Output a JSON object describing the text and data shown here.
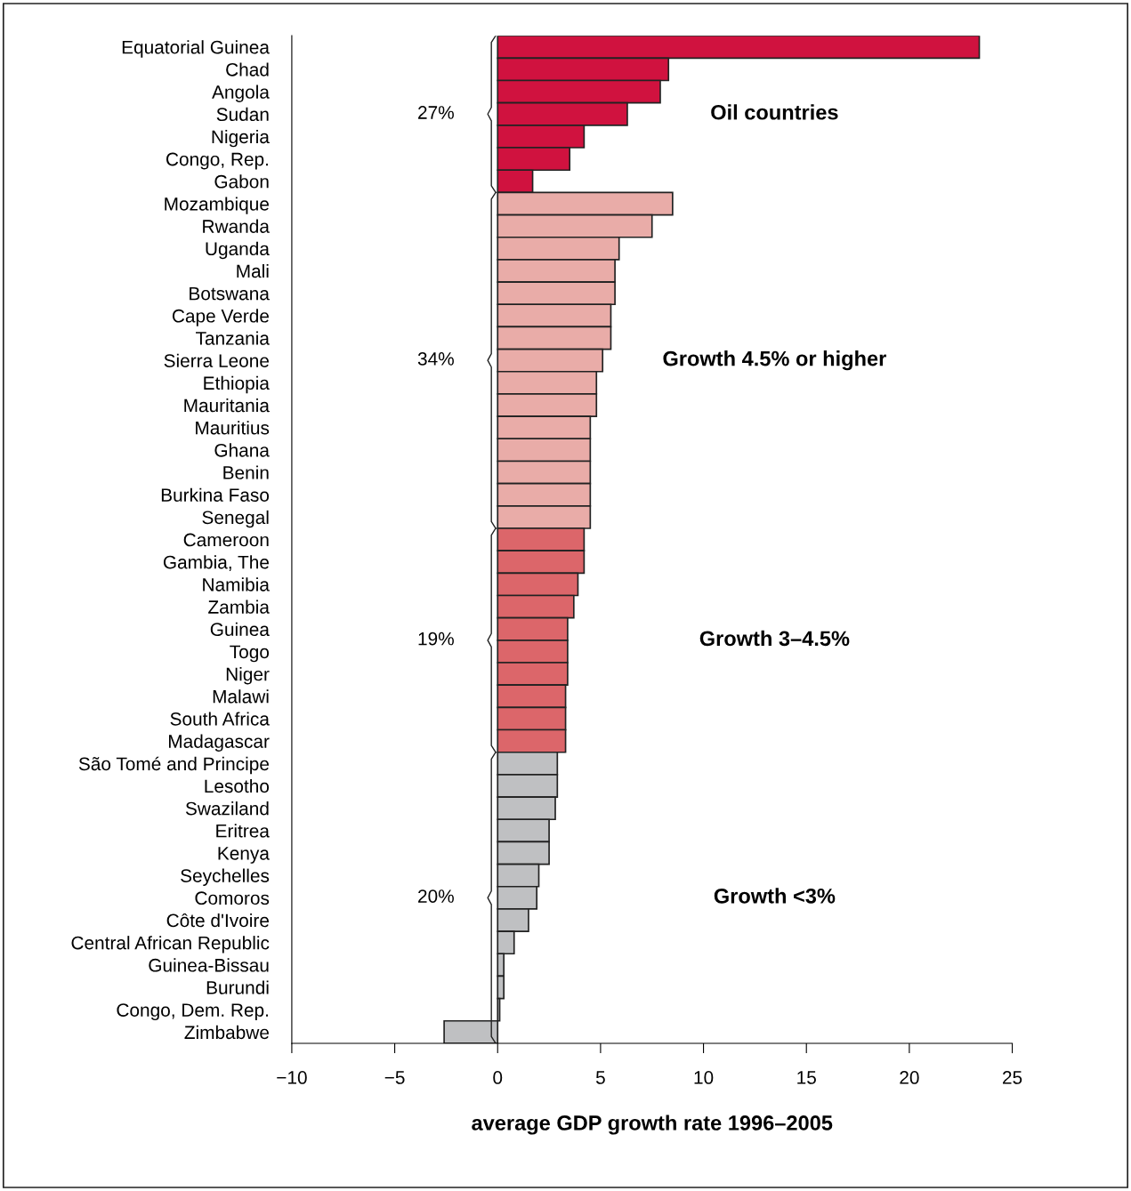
{
  "chart_data": {
    "type": "bar",
    "orientation": "horizontal",
    "xlabel": "average GDP growth rate 1996–2005",
    "categories": [
      "Equatorial Guinea",
      "Chad",
      "Angola",
      "Sudan",
      "Nigeria",
      "Congo, Rep.",
      "Gabon",
      "Mozambique",
      "Rwanda",
      "Uganda",
      "Mali",
      "Botswana",
      "Cape Verde",
      "Tanzania",
      "Sierra Leone",
      "Ethiopia",
      "Mauritania",
      "Mauritius",
      "Ghana",
      "Benin",
      "Burkina Faso",
      "Senegal",
      "Cameroon",
      "Gambia, The",
      "Namibia",
      "Zambia",
      "Guinea",
      "Togo",
      "Niger",
      "Malawi",
      "South Africa",
      "Madagascar",
      "São Tomé and Principe",
      "Lesotho",
      "Swaziland",
      "Eritrea",
      "Kenya",
      "Seychelles",
      "Comoros",
      "Côte d'Ivoire",
      "Central African Republic",
      "Guinea-Bissau",
      "Burundi",
      "Congo, Dem. Rep.",
      "Zimbabwe"
    ],
    "values": [
      23.4,
      8.3,
      7.9,
      6.3,
      4.2,
      3.5,
      1.7,
      8.5,
      7.5,
      5.9,
      5.7,
      5.7,
      5.5,
      5.5,
      5.1,
      4.8,
      4.8,
      4.5,
      4.5,
      4.5,
      4.5,
      4.5,
      4.2,
      4.2,
      3.9,
      3.7,
      3.4,
      3.4,
      3.4,
      3.3,
      3.3,
      3.3,
      2.9,
      2.9,
      2.8,
      2.5,
      2.5,
      2.0,
      1.9,
      1.5,
      0.8,
      0.3,
      0.3,
      0.1,
      -2.6
    ],
    "colors": [
      "#d0123f",
      "#d0123f",
      "#d0123f",
      "#d0123f",
      "#d0123f",
      "#d0123f",
      "#d0123f",
      "#e9aca8",
      "#e9aca8",
      "#e9aca8",
      "#e9aca8",
      "#e9aca8",
      "#e9aca8",
      "#e9aca8",
      "#e9aca8",
      "#e9aca8",
      "#e9aca8",
      "#e9aca8",
      "#e9aca8",
      "#e9aca8",
      "#e9aca8",
      "#e9aca8",
      "#dc666a",
      "#dc666a",
      "#dc666a",
      "#dc666a",
      "#dc666a",
      "#dc666a",
      "#dc666a",
      "#dc666a",
      "#dc666a",
      "#dc666a",
      "#bfc0c2",
      "#bfc0c2",
      "#bfc0c2",
      "#bfc0c2",
      "#bfc0c2",
      "#bfc0c2",
      "#bfc0c2",
      "#bfc0c2",
      "#bfc0c2",
      "#bfc0c2",
      "#bfc0c2",
      "#bfc0c2",
      "#bfc0c2"
    ],
    "xlim": [
      -10,
      25
    ],
    "xticks": [
      {
        "value": -10,
        "label": "−10"
      },
      {
        "value": -5,
        "label": "−5"
      },
      0,
      5,
      10,
      15,
      20,
      25
    ],
    "grid": false,
    "legend": false,
    "annotations": [
      "27%",
      "Oil countries",
      "34%",
      "Growth 4.5% or higher",
      "19%",
      "Growth 3–4.5%",
      "20%",
      "Growth <3%"
    ]
  }
}
